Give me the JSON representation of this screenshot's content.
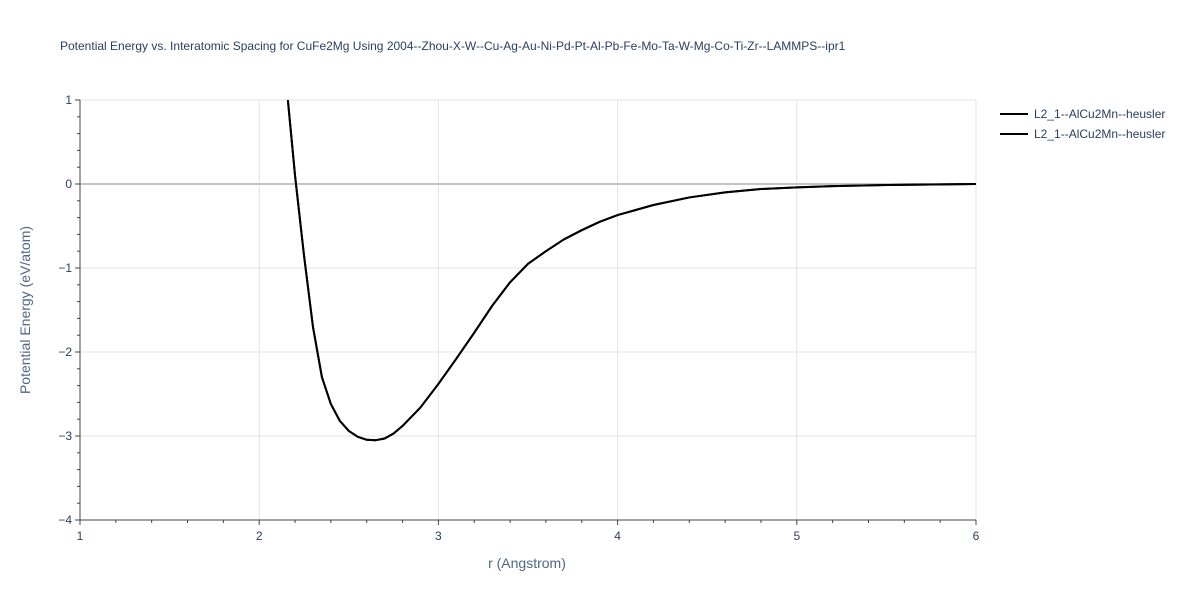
{
  "chart_data": {
    "type": "line",
    "title": "Potential Energy vs. Interatomic Spacing for CuFe2Mg Using 2004--Zhou-X-W--Cu-Ag-Au-Ni-Pd-Pt-Al-Pb-Fe-Mo-Ta-W-Mg-Co-Ti-Zr--LAMMPS--ipr1",
    "xlabel": "r (Angstrom)",
    "ylabel": "Potential Energy (eV/atom)",
    "xlim": [
      1,
      6
    ],
    "ylim": [
      -4,
      1
    ],
    "x_ticks": [
      1,
      2,
      3,
      4,
      5,
      6
    ],
    "y_ticks": [
      1,
      0,
      -1,
      -2,
      -3,
      -4
    ],
    "x_tick_labels": [
      "1",
      "2",
      "3",
      "4",
      "5",
      "6"
    ],
    "y_tick_labels": [
      "1",
      "0",
      "−1",
      "−2",
      "−3",
      "−4"
    ],
    "grid": true,
    "legend_position": "top-right",
    "series": [
      {
        "name": "L2_1--AlCu2Mn--heusler",
        "color": "#000000",
        "x": [
          2.16,
          2.2,
          2.25,
          2.3,
          2.35,
          2.4,
          2.45,
          2.5,
          2.55,
          2.6,
          2.65,
          2.7,
          2.75,
          2.8,
          2.9,
          3.0,
          3.1,
          3.2,
          3.3,
          3.4,
          3.5,
          3.6,
          3.7,
          3.8,
          3.9,
          4.0,
          4.2,
          4.4,
          4.6,
          4.8,
          5.0,
          5.2,
          5.5,
          6.0
        ],
        "y": [
          1.0,
          0.1,
          -0.85,
          -1.7,
          -2.3,
          -2.62,
          -2.82,
          -2.94,
          -3.01,
          -3.045,
          -3.05,
          -3.03,
          -2.97,
          -2.88,
          -2.66,
          -2.38,
          -2.08,
          -1.77,
          -1.45,
          -1.17,
          -0.95,
          -0.8,
          -0.66,
          -0.55,
          -0.45,
          -0.37,
          -0.25,
          -0.16,
          -0.1,
          -0.06,
          -0.04,
          -0.025,
          -0.012,
          0.0
        ]
      },
      {
        "name": "L2_1--AlCu2Mn--heusler",
        "color": "#000000",
        "x": [
          2.16,
          2.2,
          2.25,
          2.3,
          2.35,
          2.4,
          2.45,
          2.5,
          2.55,
          2.6,
          2.65,
          2.7,
          2.75,
          2.8,
          2.9,
          3.0,
          3.1,
          3.2,
          3.3,
          3.4,
          3.5,
          3.6,
          3.7,
          3.8,
          3.9,
          4.0,
          4.2,
          4.4,
          4.6,
          4.8,
          5.0,
          5.2,
          5.5,
          6.0
        ],
        "y": [
          1.0,
          0.1,
          -0.85,
          -1.7,
          -2.3,
          -2.62,
          -2.82,
          -2.94,
          -3.01,
          -3.045,
          -3.05,
          -3.03,
          -2.97,
          -2.88,
          -2.66,
          -2.38,
          -2.08,
          -1.77,
          -1.45,
          -1.17,
          -0.95,
          -0.8,
          -0.66,
          -0.55,
          -0.45,
          -0.37,
          -0.25,
          -0.16,
          -0.1,
          -0.06,
          -0.04,
          -0.025,
          -0.012,
          0.0
        ]
      }
    ]
  }
}
